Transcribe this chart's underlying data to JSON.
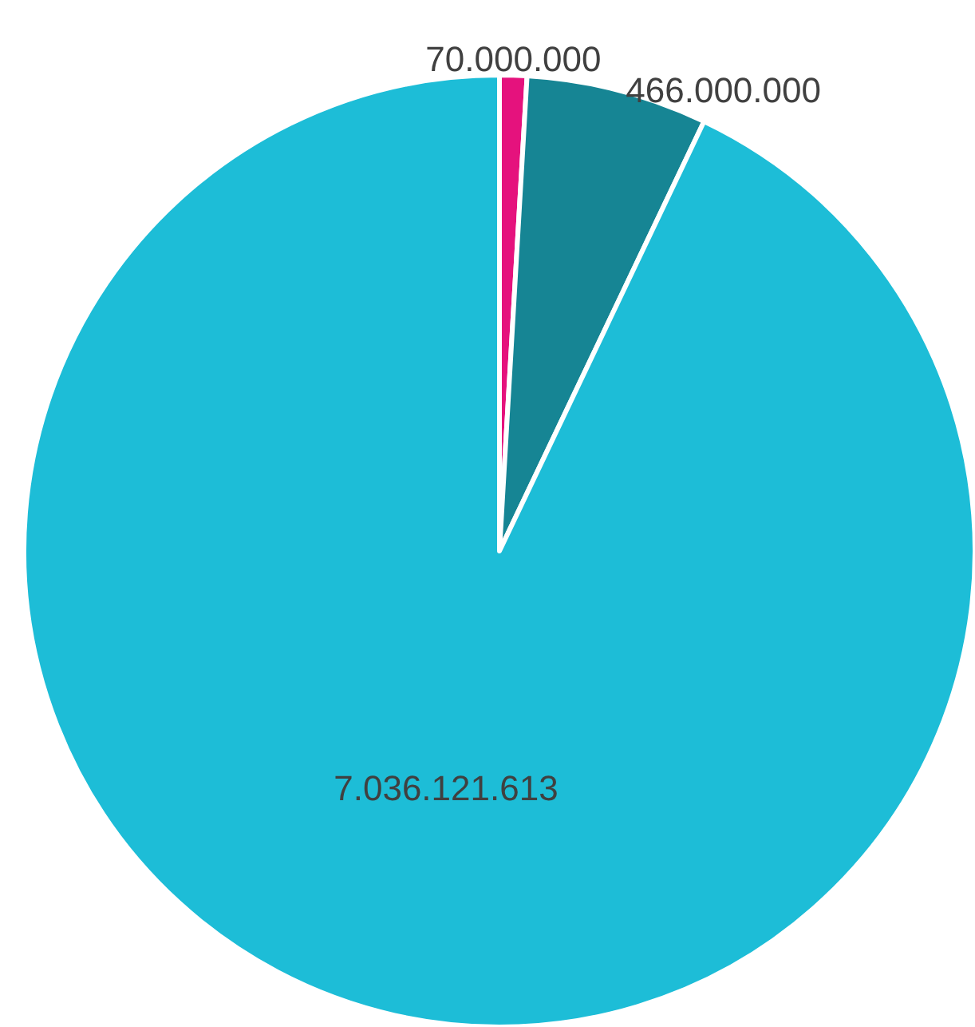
{
  "chart_data": {
    "type": "pie",
    "categories": [
      null,
      null,
      null
    ],
    "values": [
      70000000,
      466000000,
      7036121613
    ],
    "value_labels": [
      "70.000.000",
      "466.000.000",
      "7.036.121.613"
    ],
    "colors": [
      "#e5127d",
      "#168594",
      "#1dbdd7"
    ]
  }
}
